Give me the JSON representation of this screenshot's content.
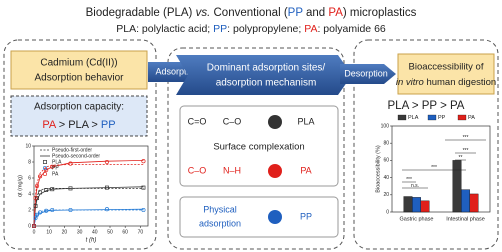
{
  "header": {
    "title_parts": [
      {
        "text": "Biodegradable (PLA) "
      },
      {
        "text": "vs.",
        "italic": true
      },
      {
        "text": " Conventional ("
      },
      {
        "text": "PP",
        "color": "#1f5fbf"
      },
      {
        "text": " and "
      },
      {
        "text": "PA",
        "color": "#e0201b"
      },
      {
        "text": ") microplastics"
      }
    ],
    "subtitle_parts": [
      {
        "text": "PLA: polylactic acid; "
      },
      {
        "text": "PP",
        "color": "#1f5fbf"
      },
      {
        "text": ": polypropylene; "
      },
      {
        "text": "PA",
        "color": "#e0201b"
      },
      {
        "text": ": polyamide 66"
      }
    ]
  },
  "left": {
    "heading": [
      "Cadmium (Cd(II))",
      "Adsorption behavior"
    ],
    "capacity_label": "Adsorption capacity:",
    "capacity_order": [
      {
        "text": "PA",
        "color": "#e0201b"
      },
      {
        "text": " > "
      },
      {
        "text": "PLA"
      },
      {
        "text": " > "
      },
      {
        "text": "PP",
        "color": "#1f5fbf"
      }
    ]
  },
  "arrows": {
    "adsorption": "Adsorption",
    "desorption": "Desorption"
  },
  "middle": {
    "heading": [
      "Dominant adsorption sites/",
      "adsorption mechanism"
    ],
    "pla_sites": [
      "C=O",
      "C–O"
    ],
    "pla_label": "PLA",
    "pla_color": "#333333",
    "complexation": "Surface complexation",
    "pa_sites": [
      "C–O",
      "N–H"
    ],
    "pa_label": "PA",
    "pa_color": "#e0201b",
    "physical": [
      "Physical",
      "adsorption"
    ],
    "pp_label": "PP",
    "pp_color": "#1f5fbf"
  },
  "right": {
    "heading_line1": "Bioaccessibility of",
    "heading_line2": [
      {
        "text": "in vitro",
        "italic": true
      },
      {
        "text": " human digestion"
      }
    ],
    "order": [
      {
        "text": "PLA"
      },
      {
        "text": " > "
      },
      {
        "text": "PP"
      },
      {
        "text": " > "
      },
      {
        "text": "PA"
      }
    ]
  },
  "chart_data": [
    {
      "type": "line",
      "x_label": "t (h)",
      "y_label": "qt (mg/g)",
      "x": [
        0,
        1,
        2,
        4,
        8,
        12,
        24,
        48,
        72
      ],
      "xlim": [
        0,
        75
      ],
      "xticks": [
        0,
        10,
        20,
        30,
        40,
        50,
        60,
        70
      ],
      "ylim": [
        0,
        10
      ],
      "yticks": [
        0,
        2,
        4,
        6,
        8,
        10
      ],
      "series": [
        {
          "name": "PLA",
          "color": "#333333",
          "values": [
            0,
            2.5,
            3.5,
            4.2,
            4.5,
            4.6,
            4.7,
            4.8,
            4.8
          ]
        },
        {
          "name": "PP",
          "color": "#1f77d4",
          "values": [
            0,
            1.0,
            1.4,
            1.7,
            1.9,
            2.0,
            2.0,
            2.1,
            2.0
          ]
        },
        {
          "name": "PA",
          "color": "#e0201b",
          "values": [
            0,
            3.5,
            5.0,
            6.2,
            7.0,
            7.4,
            7.8,
            8.0,
            8.1
          ]
        }
      ],
      "fits": [
        {
          "name": "Pseudo-first-order",
          "dash": "2,1.5",
          "curves": [
            [
              0,
              2.7,
              3.8,
              4.5,
              4.7,
              4.7,
              4.7,
              4.7,
              4.7
            ],
            [
              0,
              1.1,
              1.5,
              1.8,
              1.95,
              2.0,
              2.0,
              2.0,
              2.0
            ],
            [
              0,
              3.8,
              5.4,
              6.6,
              7.4,
              7.6,
              7.7,
              7.7,
              7.7
            ]
          ]
        },
        {
          "name": "Pseudo-second-order",
          "dash": "none",
          "curves": [
            [
              0,
              2.4,
              3.3,
              4.0,
              4.4,
              4.6,
              4.7,
              4.8,
              4.9
            ],
            [
              0,
              0.9,
              1.3,
              1.6,
              1.85,
              1.95,
              2.0,
              2.05,
              2.1
            ],
            [
              0,
              3.3,
              4.8,
              6.1,
              7.0,
              7.4,
              7.9,
              8.1,
              8.2
            ]
          ]
        }
      ]
    },
    {
      "type": "bar",
      "y_label": "Bioaccessibility (%)",
      "categories": [
        "Gastric phase",
        "Intestinal phase"
      ],
      "ylim": [
        0,
        100
      ],
      "yticks": [
        0,
        20,
        40,
        60,
        80,
        100
      ],
      "series": [
        {
          "name": "PLA",
          "color": "#3a3a3a",
          "values": [
            18,
            60
          ]
        },
        {
          "name": "PP",
          "color": "#1f5fbf",
          "values": [
            17,
            26
          ]
        },
        {
          "name": "PA",
          "color": "#e0201b",
          "values": [
            13,
            21
          ]
        }
      ],
      "annotations": [
        "***",
        "n.s.",
        "***",
        "***",
        "***",
        "**"
      ]
    }
  ]
}
